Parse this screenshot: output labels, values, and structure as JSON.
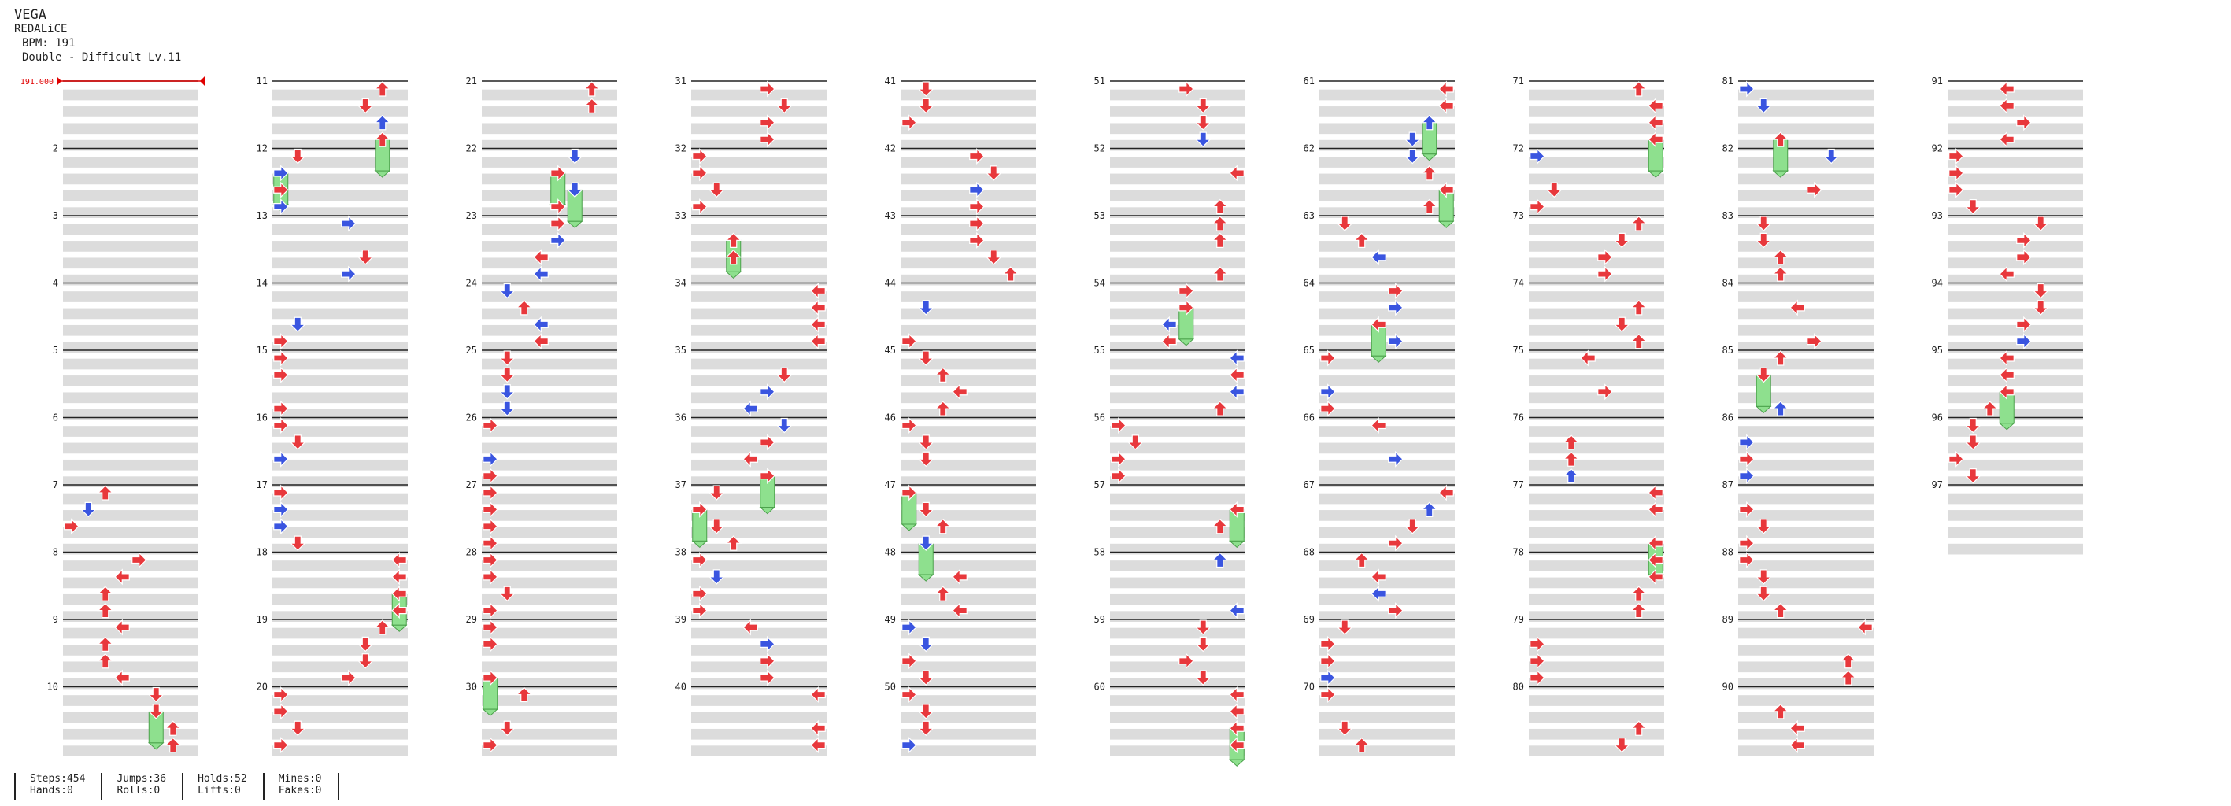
{
  "song": {
    "title": "VEGA",
    "artist": "REDALiCE",
    "bpm_label": "BPM: 191",
    "chart_label": "Double - Difficult Lv.11"
  },
  "bpm_marker": "191.000",
  "measure_numbers": [
    2,
    3,
    4,
    5,
    6,
    7,
    8,
    9,
    10,
    11,
    12,
    13,
    14,
    15,
    16,
    17,
    18,
    19,
    20,
    21,
    22,
    23,
    24,
    25,
    26,
    27,
    28,
    29,
    30,
    31,
    32,
    33,
    34,
    35,
    36,
    37,
    38,
    39,
    40,
    41,
    42,
    43,
    44,
    45,
    46,
    47,
    48,
    49,
    50,
    51,
    52,
    53,
    54,
    55,
    56,
    57,
    58,
    59,
    60,
    61,
    62,
    63,
    64,
    65,
    66,
    67,
    68,
    69,
    70,
    71,
    72,
    73,
    74,
    75,
    76,
    77,
    78,
    79,
    80,
    81,
    82,
    83,
    84,
    85,
    86,
    87,
    88,
    89,
    90,
    91,
    92,
    93,
    94,
    95,
    96,
    97
  ],
  "total_measures": 97,
  "stats": {
    "steps": "Steps:454",
    "hands": "Hands:0",
    "jumps": "Jumps:36",
    "rolls": "Rolls:0",
    "holds": "Holds:52",
    "lifts": "Lifts:0",
    "mines": "Mines:0",
    "fakes": "Fakes:0"
  },
  "colors": {
    "quarter": "#e8383c",
    "eighth": "#3a55e0",
    "sixteenth": "#f5d028",
    "hold": "#8ee08e",
    "band": "#dcdcdc",
    "line": "#222222",
    "bpm": "#e00000"
  }
}
